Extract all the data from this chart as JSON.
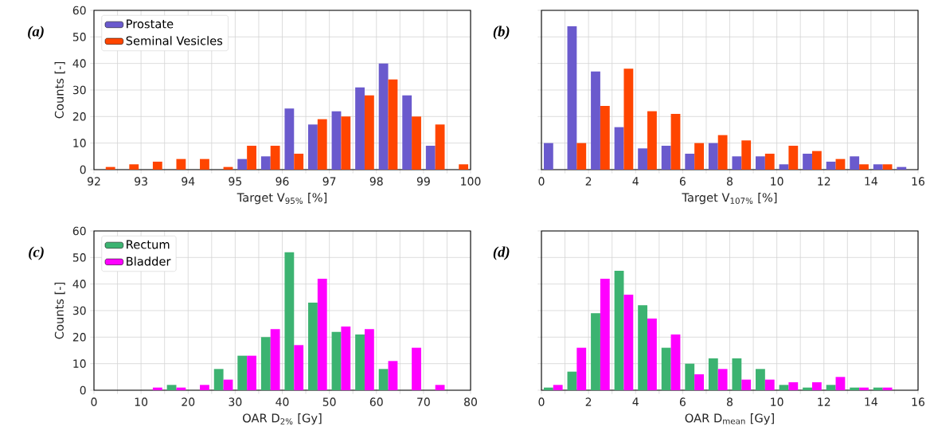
{
  "chart_data": [
    {
      "type": "histogram",
      "xlabel": "Target V$_{95%}$ [%]",
      "ylabel": "Counts [-]",
      "annotations": [
        "(a)"
      ],
      "bins": [
        92,
        92.5,
        93,
        93.5,
        94,
        94.5,
        95,
        95.5,
        96,
        96.5,
        97,
        97.5,
        98,
        98.5,
        99,
        99.5,
        100
      ],
      "series": [
        {
          "name": "Prostate",
          "color": "#6a5acd",
          "values": [
            0,
            0,
            0,
            0,
            0,
            0,
            4,
            5,
            23,
            17,
            22,
            31,
            40,
            28,
            9,
            0
          ]
        },
        {
          "name": "Seminal Vesicles",
          "color": "#ff4500",
          "values": [
            1,
            2,
            3,
            4,
            4,
            1,
            9,
            9,
            6,
            19,
            20,
            28,
            34,
            20,
            17,
            2
          ]
        }
      ],
      "xlim": [
        92,
        100
      ],
      "ylim": [
        0,
        60
      ],
      "xticks": [
        92,
        {
          "value": 92.5,
          "label": null
        },
        93,
        {
          "value": 93.5,
          "label": null
        },
        94,
        {
          "value": 94.5,
          "label": null
        },
        95,
        {
          "value": 95.5,
          "label": null
        },
        96,
        {
          "value": 96.5,
          "label": null
        },
        97,
        {
          "value": 97.5,
          "label": null
        },
        98,
        {
          "value": 98.5,
          "label": null
        },
        99,
        {
          "value": 99.5,
          "label": null
        },
        100
      ],
      "yticks": [
        0,
        10,
        20,
        30,
        40,
        50,
        60
      ],
      "grid": true,
      "legend": "top left"
    },
    {
      "type": "histogram",
      "xlabel": "Target V$_{107%}$ [%]",
      "annotations": [
        "(b)"
      ],
      "bins": [
        0,
        1,
        2,
        3,
        4,
        5,
        6,
        7,
        8,
        9,
        10,
        11,
        12,
        13,
        14,
        15,
        16
      ],
      "series": [
        {
          "color": "#6a5acd",
          "values": [
            10,
            54,
            37,
            16,
            8,
            9,
            6,
            10,
            5,
            5,
            2,
            6,
            3,
            5,
            2,
            1
          ]
        },
        {
          "color": "#ff4500",
          "values": [
            0,
            10,
            24,
            38,
            22,
            21,
            10,
            13,
            11,
            6,
            9,
            7,
            4,
            2,
            2,
            0
          ]
        }
      ],
      "xlim": [
        0,
        16
      ],
      "ylim": [
        0,
        60
      ],
      "xticks": [
        0,
        {
          "value": 1,
          "label": null
        },
        2,
        {
          "value": 3,
          "label": null
        },
        4,
        {
          "value": 5,
          "label": null
        },
        6,
        {
          "value": 7,
          "label": null
        },
        8,
        {
          "value": 9,
          "label": null
        },
        10,
        {
          "value": 11,
          "label": null
        },
        12,
        {
          "value": 13,
          "label": null
        },
        14,
        {
          "value": 15,
          "label": null
        },
        16
      ],
      "yticks": [
        0,
        10,
        20,
        30,
        40,
        50,
        60
      ],
      "grid": true,
      "tick_labels": "x"
    },
    {
      "type": "histogram",
      "xlabel": "OAR D$_{2%}$ [Gy]",
      "ylabel": "Counts [-]",
      "annotations": [
        "(c)"
      ],
      "bins": [
        0,
        5,
        10,
        15,
        20,
        25,
        30,
        35,
        40,
        45,
        50,
        55,
        60,
        65,
        70,
        75,
        80
      ],
      "series": [
        {
          "name": "Rectum",
          "color": "#3cb371",
          "values": [
            0,
            0,
            0,
            2,
            0,
            8,
            13,
            20,
            52,
            33,
            22,
            21,
            8,
            0,
            0,
            0
          ]
        },
        {
          "name": "Bladder",
          "color": "#ff00ff",
          "values": [
            0,
            0,
            1,
            1,
            2,
            4,
            13,
            23,
            17,
            42,
            24,
            23,
            11,
            16,
            2,
            0
          ]
        }
      ],
      "xlim": [
        0,
        80
      ],
      "ylim": [
        0,
        60
      ],
      "xticks": [
        0,
        {
          "value": 5,
          "label": null
        },
        10,
        {
          "value": 15,
          "label": null
        },
        20,
        {
          "value": 25,
          "label": null
        },
        30,
        {
          "value": 35,
          "label": null
        },
        40,
        {
          "value": 45,
          "label": null
        },
        50,
        {
          "value": 55,
          "label": null
        },
        60,
        {
          "value": 65,
          "label": null
        },
        70,
        {
          "value": 75,
          "label": null
        },
        80
      ],
      "yticks": [
        0,
        10,
        20,
        30,
        40,
        50,
        60
      ],
      "grid": true,
      "legend": "top left"
    },
    {
      "type": "histogram",
      "xlabel": "OAR D$_{mean}$ [Gy]",
      "annotations": [
        "(d)"
      ],
      "bins": [
        0,
        1,
        2,
        3,
        4,
        5,
        6,
        7,
        8,
        9,
        10,
        11,
        12,
        13,
        14,
        15,
        16
      ],
      "series": [
        {
          "color": "#3cb371",
          "values": [
            1,
            7,
            29,
            45,
            32,
            16,
            10,
            12,
            12,
            8,
            2,
            1,
            2,
            1,
            1,
            0
          ]
        },
        {
          "color": "#ff00ff",
          "values": [
            2,
            16,
            42,
            36,
            27,
            21,
            6,
            8,
            4,
            4,
            3,
            3,
            5,
            1,
            1,
            0
          ]
        }
      ],
      "xlim": [
        0,
        16
      ],
      "ylim": [
        0,
        60
      ],
      "xticks": [
        0,
        {
          "value": 1,
          "label": null
        },
        2,
        {
          "value": 3,
          "label": null
        },
        4,
        {
          "value": 5,
          "label": null
        },
        6,
        {
          "value": 7,
          "label": null
        },
        8,
        {
          "value": 9,
          "label": null
        },
        10,
        {
          "value": 11,
          "label": null
        },
        12,
        {
          "value": 13,
          "label": null
        },
        14,
        {
          "value": 15,
          "label": null
        },
        16
      ],
      "yticks": [
        0,
        10,
        20,
        30,
        40,
        50,
        60
      ],
      "grid": true,
      "tick_labels": "x"
    }
  ]
}
